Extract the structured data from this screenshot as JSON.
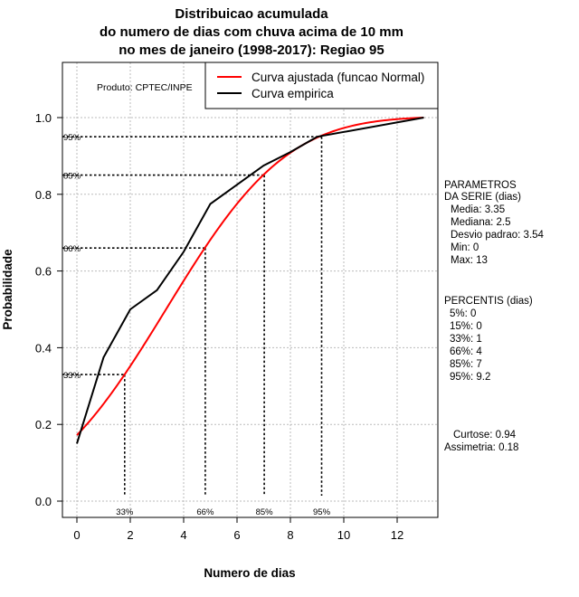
{
  "chart_data": {
    "type": "line",
    "title": [
      "Distribuicao acumulada",
      "do numero de dias com chuva acima de 10 mm",
      "no mes de janeiro (1998-2017): Regiao 95"
    ],
    "xlabel": "Numero de dias",
    "ylabel": "Probabilidade",
    "xlim": [
      -0.6,
      13.5
    ],
    "ylim": [
      -0.05,
      1.12
    ],
    "xticks": [
      0,
      2,
      4,
      6,
      8,
      10,
      12
    ],
    "yticks": [
      0.0,
      0.2,
      0.4,
      0.6,
      0.8,
      1.0
    ],
    "ytick_labels": [
      "0.0",
      "0.2",
      "0.4",
      "0.6",
      "0.8",
      "1.0"
    ],
    "grid": true,
    "product_label": "Produto: CPTEC/INPE",
    "legend": {
      "placement": "top-right",
      "entries": [
        {
          "label": "Curva ajustada (funcao Normal)",
          "color": "#ff0000"
        },
        {
          "label": "Curva empirica",
          "color": "#000000"
        }
      ]
    },
    "series": [
      {
        "name": "Curva ajustada (funcao Normal)",
        "color": "#ff0000",
        "distribution": "normal",
        "mean": 3.35,
        "sd": 3.54,
        "x_range": [
          0,
          13
        ]
      },
      {
        "name": "Curva empirica",
        "color": "#000000",
        "x": [
          0,
          1,
          2,
          3,
          4,
          5,
          6,
          7,
          8,
          9,
          13
        ],
        "y": [
          0.15,
          0.375,
          0.5,
          0.55,
          0.65,
          0.775,
          0.825,
          0.875,
          0.91,
          0.95,
          1.0
        ]
      }
    ],
    "percentile_markers": [
      {
        "label": "33%",
        "p": 0.33,
        "x": 1.79
      },
      {
        "label": "66%",
        "p": 0.66,
        "x": 4.81
      },
      {
        "label": "85%",
        "p": 0.85,
        "x": 7.02
      },
      {
        "label": "95%",
        "p": 0.95,
        "x": 9.17
      }
    ]
  },
  "side_panel": {
    "params_title": [
      "PARAMETROS",
      "DA SERIE (dias)"
    ],
    "params": [
      "Media: 3.35",
      "Mediana: 2.5",
      "Desvio padrao: 3.54",
      "Min: 0",
      "Max: 13"
    ],
    "percentis_title": "PERCENTIS (dias)",
    "percentis": [
      "5%: 0",
      "15%: 0",
      "33%: 1",
      "66%: 4",
      "85%: 7",
      "95%: 9.2"
    ],
    "curtose": "Curtose: 0.94",
    "assimetria": "Assimetria: 0.18"
  }
}
